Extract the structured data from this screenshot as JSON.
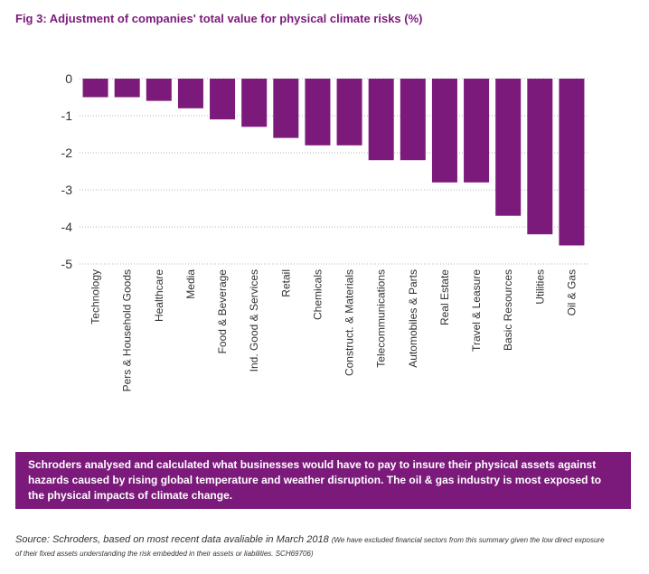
{
  "figure": {
    "title": "Fig 3: Adjustment of companies' total value for physical climate risks (%)"
  },
  "chart_data": {
    "type": "bar",
    "categories": [
      "Technology",
      "Pers & Household Goods",
      "Healthcare",
      "Media",
      "Food & Beverage",
      "Ind. Good & Services",
      "Retail",
      "Chemicals",
      "Construct. & Materials",
      "Telecommunications",
      "Automobiles & Parts",
      "Real Estate",
      "Travel & Leasure",
      "Basic Resources",
      "Utilities",
      "Oil & Gas"
    ],
    "values": [
      -0.5,
      -0.5,
      -0.6,
      -0.8,
      -1.1,
      -1.3,
      -1.6,
      -1.8,
      -1.8,
      -2.2,
      -2.2,
      -2.8,
      -2.8,
      -3.7,
      -4.2,
      -4.5
    ],
    "yticks": [
      0,
      -1,
      -2,
      -3,
      -4,
      -5
    ],
    "ylim": [
      -5,
      0
    ],
    "bar_color": "#7b1a7b",
    "grid": true
  },
  "callout": {
    "text": "Schroders analysed and calculated what businesses would have to pay to insure their physical assets against hazards caused by rising global temperature and weather disruption. The oil & gas industry is most exposed to the physical impacts of climate change."
  },
  "source": {
    "main": "Source: Schroders, based on most recent data avaliable in March 2018",
    "note": "(We have excluded financial sectors from this summary given the low direct exposure of their fixed assets understanding the risk embedded in their assets or liabilities. SCH69706)"
  }
}
